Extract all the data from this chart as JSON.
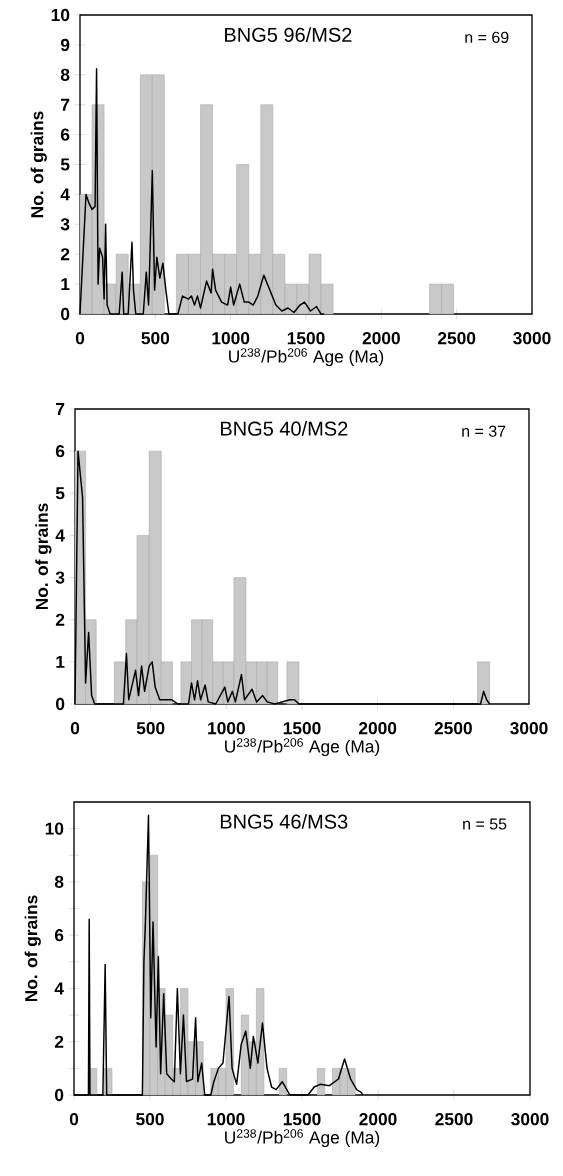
{
  "chart_data": [
    {
      "type": "histogram",
      "title": "BNG5 96/MS2",
      "xlabel": "U$^{238}$/Pb$^{206}$ Age (Ma)",
      "ylabel": "No. of grains",
      "annotations": [
        "n = 69"
      ],
      "bins": [
        0,
        80,
        160,
        240,
        320,
        400,
        480,
        560,
        640,
        720,
        800,
        880,
        960,
        1040,
        1120,
        1200,
        1280,
        1360,
        1440,
        1520,
        1600,
        1680,
        2320,
        2400,
        2480
      ],
      "values": [
        4,
        7,
        1,
        2,
        1,
        8,
        8,
        0,
        2,
        2,
        7,
        2,
        2,
        5,
        2,
        7,
        2,
        1,
        1,
        2,
        1,
        0,
        1,
        1
      ],
      "color": "#c8c8c8",
      "series": [
        {
          "type": "line",
          "color": "#000000",
          "x": [
            0,
            40,
            60,
            80,
            100,
            110,
            120,
            130,
            150,
            160,
            170,
            180,
            200,
            260,
            280,
            290,
            320,
            345,
            355,
            370,
            420,
            440,
            455,
            480,
            495,
            510,
            530,
            550,
            570,
            590,
            650,
            680,
            720,
            740,
            760,
            780,
            800,
            840,
            870,
            880,
            900,
            940,
            980,
            1000,
            1020,
            1060,
            1090,
            1120,
            1150,
            1180,
            1220,
            1260,
            1300,
            1340,
            1380,
            1420,
            1460,
            1490,
            1530,
            1570,
            1600,
            1620
          ],
          "values": [
            0,
            4,
            3.7,
            3.5,
            3.6,
            8.2,
            1,
            2.2,
            1.9,
            0.5,
            3,
            0.3,
            0,
            0,
            1.4,
            0,
            0,
            2.4,
            0.8,
            0,
            0,
            1.4,
            0.3,
            4.8,
            0.8,
            1.9,
            1.2,
            1.7,
            0.8,
            0,
            0,
            0.6,
            0.5,
            0.6,
            0.3,
            0.6,
            0.2,
            1.1,
            0.7,
            1.5,
            0.8,
            0.4,
            0.3,
            0.9,
            0.3,
            1,
            0.4,
            0.4,
            0.3,
            0.6,
            1.3,
            0.8,
            0.3,
            0.1,
            0.2,
            0.05,
            0.3,
            0.4,
            0.1,
            0.25,
            0,
            0
          ]
        }
      ],
      "xlim": [
        0,
        3000
      ],
      "ylim": [
        0,
        10
      ],
      "xticks": [
        0,
        500,
        1000,
        1500,
        2000,
        2500,
        3000
      ],
      "yticks": [
        0,
        1,
        2,
        3,
        4,
        5,
        6,
        7,
        8,
        9,
        10
      ]
    },
    {
      "type": "histogram",
      "title": "BNG5 40/MS2",
      "xlabel": "U$^{238}$/Pb$^{206}$ Age (Ma)",
      "ylabel": "No. of grains",
      "annotations": [
        "n = 37"
      ],
      "bins": [
        0,
        70,
        140,
        260,
        335,
        410,
        490,
        570,
        645,
        700,
        770,
        840,
        910,
        980,
        1050,
        1130,
        1200,
        1270,
        1340,
        1400,
        1480,
        2660,
        2740
      ],
      "values": [
        6,
        2,
        0,
        1,
        2,
        4,
        6,
        1,
        0,
        1,
        2,
        2,
        1,
        1,
        3,
        1,
        1,
        1,
        0,
        1,
        0,
        1
      ],
      "color": "#c8c8c8",
      "series": [
        {
          "type": "line",
          "color": "#000000",
          "x": [
            0,
            20,
            50,
            70,
            90,
            110,
            130,
            320,
            340,
            355,
            400,
            420,
            440,
            460,
            490,
            510,
            530,
            560,
            600,
            640,
            680,
            750,
            770,
            790,
            810,
            830,
            860,
            880,
            930,
            990,
            1010,
            1040,
            1060,
            1100,
            1120,
            1170,
            1200,
            1240,
            1270,
            1320,
            1420,
            1450,
            1480,
            2680,
            2700,
            2720,
            2740
          ],
          "values": [
            0,
            6,
            4.9,
            0.5,
            1.7,
            0.2,
            0,
            0,
            1.2,
            0.1,
            0.8,
            0.2,
            0.9,
            0.3,
            0.9,
            1,
            0.4,
            0.1,
            0.1,
            0.1,
            0,
            0,
            0.5,
            0.1,
            0.55,
            0.1,
            0.45,
            0.05,
            0,
            0.4,
            0.05,
            0.3,
            0.05,
            0.7,
            0.1,
            0.35,
            0.05,
            0.2,
            0.05,
            0,
            0.1,
            0.1,
            0,
            0,
            0.3,
            0.1,
            0
          ]
        }
      ],
      "xlim": [
        0,
        3000
      ],
      "ylim": [
        0,
        7
      ],
      "xticks": [
        0,
        500,
        1000,
        1500,
        2000,
        2500,
        3000
      ],
      "yticks": [
        0,
        1,
        2,
        3,
        4,
        5,
        6,
        7
      ]
    },
    {
      "type": "histogram",
      "title": "BNG5 46/MS3",
      "xlabel": "U$^{238}$/Pb$^{206}$ Age (Ma)",
      "ylabel": "No. of grains",
      "annotations": [
        "n = 55"
      ],
      "bins": [
        0,
        50,
        100,
        150,
        200,
        250,
        300,
        350,
        400,
        450,
        500,
        550,
        600,
        650,
        700,
        750,
        800,
        850,
        900,
        950,
        1000,
        1050,
        1100,
        1150,
        1200,
        1250,
        1300,
        1350,
        1400,
        1450,
        1500,
        1550,
        1600,
        1650,
        1700,
        1750,
        1800,
        1850
      ],
      "values": [
        0,
        0,
        1,
        0,
        1,
        0,
        0,
        0,
        0,
        8,
        9,
        4,
        3,
        1,
        4,
        2,
        2,
        0,
        1,
        1,
        4,
        0,
        3,
        2,
        4,
        0,
        0,
        1,
        0,
        0,
        0,
        0,
        1,
        0,
        1,
        1,
        1
      ],
      "color": "#c8c8c8",
      "series": [
        {
          "type": "line",
          "color": "#000000",
          "x": [
            0,
            95,
            100,
            105,
            190,
            205,
            215,
            450,
            460,
            470,
            490,
            505,
            520,
            540,
            555,
            570,
            590,
            610,
            640,
            660,
            680,
            700,
            720,
            740,
            780,
            800,
            815,
            840,
            860,
            900,
            920,
            950,
            980,
            1020,
            1040,
            1070,
            1100,
            1130,
            1160,
            1180,
            1210,
            1240,
            1270,
            1300,
            1330,
            1370,
            1400,
            1420,
            1540,
            1580,
            1620,
            1680,
            1740,
            1780,
            1820,
            1860,
            1890,
            1900
          ],
          "values": [
            0,
            0,
            6.6,
            0,
            0,
            4.9,
            0,
            0,
            5,
            6.5,
            10.5,
            2.9,
            6.5,
            1.8,
            5.2,
            0.8,
            3.8,
            0.8,
            0.6,
            0.5,
            4,
            0.8,
            3,
            0.5,
            0.6,
            2.9,
            0.5,
            1.2,
            0,
            0,
            0.5,
            1,
            1.2,
            3.7,
            1,
            0.4,
            1.9,
            2.4,
            1,
            2.2,
            1.2,
            2.7,
            1,
            0.3,
            0.2,
            0.5,
            0.2,
            0,
            0,
            0.3,
            0.4,
            0.35,
            0.6,
            1.35,
            0.6,
            0.2,
            0.1,
            0
          ]
        }
      ],
      "xlim": [
        0,
        3000
      ],
      "ylim": [
        0,
        11
      ],
      "xticks": [
        0,
        500,
        1000,
        1500,
        2000,
        2500,
        3000
      ],
      "yticks": [
        0,
        {
          "value": 1,
          "label": null
        },
        2,
        {
          "value": 3,
          "label": null
        },
        4,
        {
          "value": 5,
          "label": null
        },
        6,
        {
          "value": 7,
          "label": null
        },
        8,
        {
          "value": 9,
          "label": null
        },
        10
      ]
    }
  ]
}
